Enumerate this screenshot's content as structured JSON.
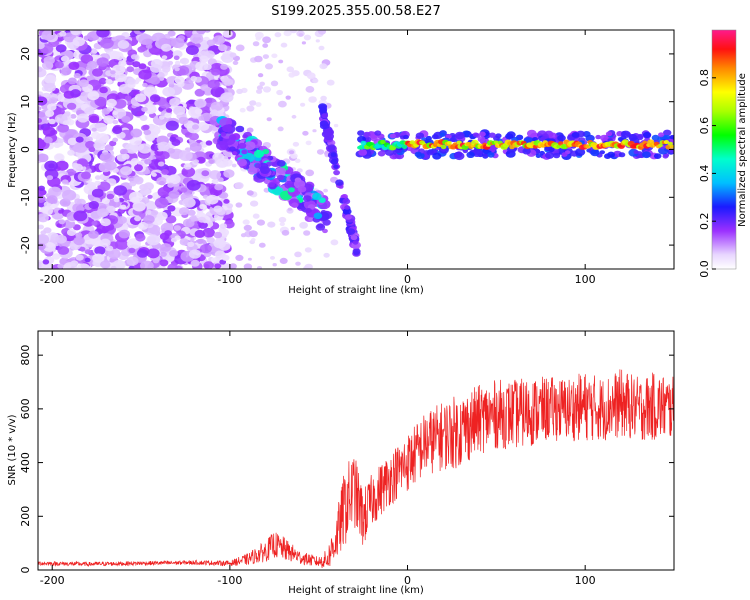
{
  "title": "S199.2025.355.00.58.E27",
  "chart_data": [
    {
      "type": "heatmap",
      "xlabel": "Height of straight line (km)",
      "ylabel": "Frequency (Hz)",
      "xlim": [
        -208,
        150
      ],
      "ylim": [
        -25,
        25
      ],
      "x_ticks": [
        -200,
        -100,
        0,
        100
      ],
      "y_ticks": [
        -20,
        -10,
        0,
        10,
        20
      ],
      "colorbar": {
        "label": "Normalized spectral amplitude",
        "range": [
          0,
          1
        ],
        "ticks": [
          "0.0",
          "0.2",
          "0.4",
          "0.6",
          "0.8"
        ],
        "tick_values": [
          0.0,
          0.2,
          0.4,
          0.6,
          0.8
        ]
      },
      "features": [
        {
          "name": "steady_tone_line",
          "x_range": [
            -27,
            150
          ],
          "freq_hz": 1,
          "amplitude": "high"
        },
        {
          "name": "descending_chirp",
          "x_range": [
            -105,
            -45
          ],
          "freq_range_hz": [
            4,
            -14
          ],
          "amplitude": "medium"
        },
        {
          "name": "steep_branch",
          "x_range": [
            -48,
            -28
          ],
          "freq_range_hz": [
            8,
            -22
          ],
          "amplitude": "medium"
        },
        {
          "name": "scattered_noise",
          "x_range": [
            -208,
            -100
          ],
          "freq_range_hz": [
            -25,
            25
          ],
          "amplitude": "low"
        }
      ]
    },
    {
      "type": "line",
      "xlabel": "Height of straight line (km)",
      "ylabel": "SNR (10 * v/v)",
      "xlim": [
        -208,
        150
      ],
      "ylim": [
        0,
        890
      ],
      "x_ticks": [
        -200,
        -100,
        0,
        100
      ],
      "y_ticks": [
        0,
        200,
        400,
        600,
        800
      ],
      "color": "#ee2222",
      "series": [
        {
          "name": "SNR",
          "x": [
            -208,
            -180,
            -150,
            -120,
            -100,
            -90,
            -80,
            -75,
            -70,
            -60,
            -50,
            -45,
            -40,
            -35,
            -30,
            -25,
            -20,
            -10,
            0,
            10,
            20,
            30,
            40,
            50,
            60,
            70,
            80,
            90,
            100,
            110,
            120,
            130,
            140,
            150
          ],
          "y": [
            25,
            22,
            25,
            28,
            25,
            40,
            70,
            95,
            80,
            45,
            30,
            40,
            120,
            240,
            300,
            190,
            260,
            340,
            400,
            470,
            500,
            520,
            560,
            580,
            580,
            590,
            600,
            600,
            610,
            600,
            620,
            600,
            610,
            600
          ],
          "noise": [
            8,
            8,
            8,
            8,
            10,
            22,
            40,
            50,
            45,
            25,
            20,
            40,
            90,
            150,
            140,
            110,
            100,
            100,
            110,
            120,
            130,
            140,
            130,
            130,
            130,
            130,
            120,
            120,
            130,
            120,
            130,
            120,
            130,
            120
          ]
        }
      ]
    }
  ]
}
